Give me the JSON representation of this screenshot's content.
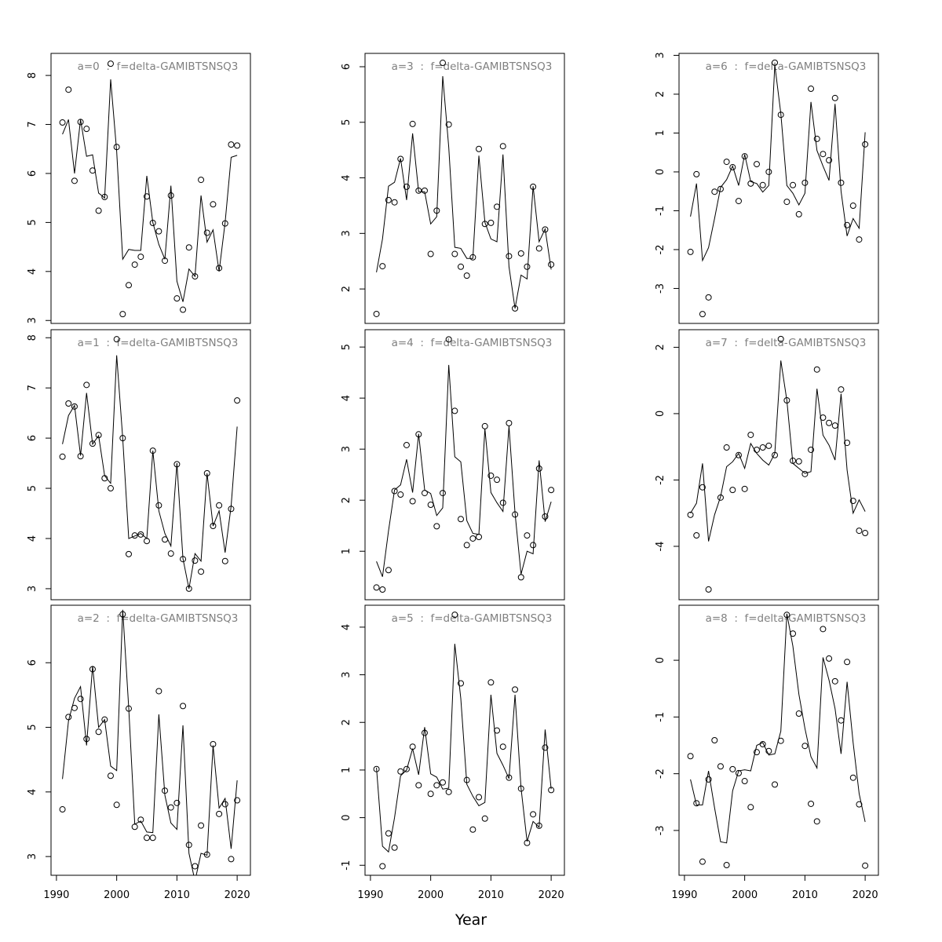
{
  "xlabel": "Year",
  "chart_data": [
    {
      "type": "line",
      "title": "a=0  :  f=delta-GAMIBTSNSQ3",
      "x": [
        1991,
        1992,
        1993,
        1994,
        1995,
        1996,
        1997,
        1998,
        1999,
        2000,
        2001,
        2002,
        2003,
        2004,
        2005,
        2006,
        2007,
        2008,
        2009,
        2010,
        2011,
        2012,
        2013,
        2014,
        2015,
        2016,
        2017,
        2018,
        2019,
        2020
      ],
      "series": [
        {
          "style": "points",
          "color": "#000000",
          "values": [
            7.04,
            7.71,
            5.85,
            7.05,
            6.91,
            6.06,
            5.24,
            5.52,
            8.24,
            6.54,
            3.13,
            3.72,
            4.14,
            4.3,
            5.53,
            4.99,
            4.82,
            4.22,
            5.55,
            3.45,
            3.22,
            4.49,
            3.9,
            5.87,
            4.79,
            5.37,
            4.07,
            4.98,
            6.59,
            6.57
          ]
        },
        {
          "style": "line",
          "color": "#000000",
          "values": [
            6.8,
            7.1,
            6.0,
            7.1,
            6.35,
            6.38,
            5.6,
            5.5,
            7.92,
            6.45,
            4.25,
            4.45,
            4.43,
            4.43,
            5.95,
            5.0,
            4.55,
            4.25,
            5.75,
            3.8,
            3.38,
            4.05,
            3.9,
            5.55,
            4.6,
            4.85,
            4.0,
            5.0,
            6.33,
            6.37
          ]
        }
      ],
      "xlim": [
        1989.1,
        2022.2
      ],
      "ylim": [
        2.94,
        8.45
      ],
      "yticks": [
        3,
        4,
        5,
        6,
        7,
        8
      ]
    },
    {
      "type": "line",
      "title": "a=1  :  f=delta-GAMIBTSNSQ3",
      "x": [
        1991,
        1992,
        1993,
        1994,
        1995,
        1996,
        1997,
        1998,
        1999,
        2000,
        2001,
        2002,
        2003,
        2004,
        2005,
        2006,
        2007,
        2008,
        2009,
        2010,
        2011,
        2012,
        2013,
        2014,
        2015,
        2016,
        2017,
        2018,
        2019,
        2020
      ],
      "series": [
        {
          "style": "points",
          "color": "#000000",
          "values": [
            5.63,
            6.69,
            6.63,
            5.64,
            7.06,
            5.89,
            6.06,
            5.2,
            5.0,
            7.97,
            6.0,
            3.69,
            4.06,
            4.08,
            3.95,
            5.75,
            4.66,
            3.98,
            3.7,
            5.48,
            3.59,
            3.0,
            3.56,
            3.34,
            5.3,
            4.25,
            4.66,
            3.55,
            4.59,
            6.75
          ]
        },
        {
          "style": "line",
          "color": "#000000",
          "values": [
            5.88,
            6.45,
            6.65,
            5.65,
            6.9,
            5.88,
            6.05,
            5.25,
            5.1,
            7.65,
            6.0,
            4.0,
            4.05,
            4.1,
            4.0,
            5.75,
            4.55,
            4.1,
            3.85,
            5.5,
            3.6,
            3.0,
            3.7,
            3.55,
            5.3,
            4.25,
            4.55,
            3.72,
            4.65,
            6.23
          ]
        }
      ],
      "xlim": [
        1989.1,
        2022.2
      ],
      "ylim": [
        2.78,
        8.16
      ],
      "yticks": [
        3,
        4,
        5,
        6,
        7,
        8
      ]
    },
    {
      "type": "line",
      "title": "a=2  :  f=delta-GAMIBTSNSQ3",
      "x": [
        1991,
        1992,
        1993,
        1994,
        1995,
        1996,
        1997,
        1998,
        1999,
        2000,
        2001,
        2002,
        2003,
        2004,
        2005,
        2006,
        2007,
        2008,
        2009,
        2010,
        2011,
        2012,
        2013,
        2014,
        2015,
        2016,
        2017,
        2018,
        2019,
        2020
      ],
      "series": [
        {
          "style": "points",
          "color": "#000000",
          "values": [
            3.73,
            5.16,
            5.3,
            5.44,
            4.82,
            5.9,
            4.93,
            5.12,
            4.25,
            3.8,
            6.75,
            5.29,
            3.46,
            3.57,
            3.29,
            3.29,
            5.56,
            4.02,
            3.76,
            3.83,
            5.33,
            3.18,
            2.85,
            3.48,
            3.03,
            4.74,
            3.66,
            3.81,
            2.96,
            3.87
          ]
        },
        {
          "style": "line",
          "color": "#000000",
          "values": [
            4.2,
            5.1,
            5.45,
            5.63,
            4.72,
            5.95,
            5.0,
            5.12,
            4.4,
            4.33,
            6.82,
            5.3,
            3.5,
            3.55,
            3.38,
            3.37,
            5.2,
            3.95,
            3.52,
            3.42,
            5.03,
            3.05,
            2.62,
            3.05,
            3.02,
            4.72,
            3.75,
            3.9,
            3.12,
            4.18
          ]
        }
      ],
      "xlim": [
        1989.1,
        2022.2
      ],
      "ylim": [
        2.71,
        6.89
      ],
      "yticks": [
        3,
        4,
        5,
        6
      ],
      "xticks": [
        1990,
        2000,
        2010,
        2020
      ]
    },
    {
      "type": "line",
      "title": "a=3  :  f=delta-GAMIBTSNSQ3",
      "x": [
        1991,
        1992,
        1993,
        1994,
        1995,
        1996,
        1997,
        1998,
        1999,
        2000,
        2001,
        2002,
        2003,
        2004,
        2005,
        2006,
        2007,
        2008,
        2009,
        2010,
        2011,
        2012,
        2013,
        2014,
        2015,
        2016,
        2017,
        2018,
        2019,
        2020
      ],
      "series": [
        {
          "style": "points",
          "color": "#000000",
          "values": [
            1.55,
            2.41,
            3.6,
            3.56,
            4.34,
            3.84,
            4.97,
            3.77,
            3.77,
            2.63,
            3.41,
            6.07,
            4.96,
            2.63,
            2.4,
            2.24,
            2.57,
            4.52,
            3.17,
            3.19,
            3.48,
            4.57,
            2.59,
            1.65,
            2.64,
            2.4,
            3.84,
            2.73,
            3.07,
            2.44
          ]
        },
        {
          "style": "line",
          "color": "#000000",
          "values": [
            2.3,
            2.9,
            3.85,
            3.92,
            4.35,
            3.6,
            4.8,
            3.75,
            3.75,
            3.17,
            3.3,
            5.83,
            4.55,
            2.75,
            2.73,
            2.55,
            2.55,
            4.4,
            3.2,
            2.9,
            2.85,
            4.42,
            2.4,
            1.65,
            2.25,
            2.18,
            3.85,
            2.85,
            3.08,
            2.35
          ]
        }
      ],
      "xlim": [
        1989.1,
        2022.2
      ],
      "ylim": [
        1.38,
        6.24
      ],
      "yticks": [
        2,
        3,
        4,
        5,
        6
      ]
    },
    {
      "type": "line",
      "title": "a=4  :  f=delta-GAMIBTSNSQ3",
      "x": [
        1991,
        1992,
        1993,
        1994,
        1995,
        1996,
        1997,
        1998,
        1999,
        2000,
        2001,
        2002,
        2003,
        2004,
        2005,
        2006,
        2007,
        2008,
        2009,
        2010,
        2011,
        2012,
        2013,
        2014,
        2015,
        2016,
        2017,
        2018,
        2019,
        2020
      ],
      "series": [
        {
          "style": "points",
          "color": "#000000",
          "values": [
            0.29,
            0.25,
            0.63,
            2.18,
            2.11,
            3.08,
            1.98,
            3.29,
            2.14,
            1.91,
            1.49,
            2.14,
            5.15,
            3.75,
            1.63,
            1.12,
            1.25,
            1.28,
            3.45,
            2.48,
            2.4,
            1.95,
            3.51,
            1.72,
            0.49,
            1.31,
            1.12,
            2.62,
            1.68,
            2.2
          ]
        },
        {
          "style": "line",
          "color": "#000000",
          "values": [
            0.8,
            0.5,
            1.4,
            2.2,
            2.3,
            2.8,
            2.15,
            3.3,
            2.2,
            2.13,
            1.7,
            1.85,
            4.65,
            2.85,
            2.75,
            1.6,
            1.35,
            1.33,
            3.4,
            2.15,
            1.95,
            1.78,
            3.45,
            1.75,
            0.55,
            1.0,
            0.95,
            2.78,
            1.58,
            1.97
          ]
        }
      ],
      "xlim": [
        1989.1,
        2022.2
      ],
      "ylim": [
        0.05,
        5.34
      ],
      "yticks": [
        1,
        2,
        3,
        4,
        5
      ]
    },
    {
      "type": "line",
      "title": "a=5  :  f=delta-GAMIBTSNSQ3",
      "x": [
        1991,
        1992,
        1993,
        1994,
        1995,
        1996,
        1997,
        1998,
        1999,
        2000,
        2001,
        2002,
        2003,
        2004,
        2005,
        2006,
        2007,
        2008,
        2009,
        2010,
        2011,
        2012,
        2013,
        2014,
        2015,
        2016,
        2017,
        2018,
        2019,
        2020
      ],
      "series": [
        {
          "style": "points",
          "color": "#000000",
          "values": [
            1.02,
            -1.02,
            -0.33,
            -0.63,
            0.97,
            1.02,
            1.49,
            0.68,
            1.78,
            0.5,
            0.68,
            0.74,
            0.54,
            4.26,
            2.82,
            0.79,
            -0.25,
            0.43,
            -0.02,
            2.84,
            1.83,
            1.49,
            0.84,
            2.69,
            0.61,
            -0.53,
            0.07,
            -0.17,
            1.47,
            0.58
          ]
        },
        {
          "style": "line",
          "color": "#000000",
          "values": [
            1.05,
            -0.6,
            -0.72,
            0.0,
            0.88,
            1.0,
            1.45,
            0.9,
            1.9,
            0.92,
            0.85,
            0.6,
            0.62,
            3.65,
            2.5,
            0.7,
            0.45,
            0.25,
            0.32,
            2.58,
            1.35,
            1.1,
            0.82,
            2.58,
            0.62,
            -0.5,
            -0.08,
            -0.2,
            1.85,
            0.6
          ]
        }
      ],
      "xlim": [
        1989.1,
        2022.2
      ],
      "ylim": [
        -1.21,
        4.46
      ],
      "yticks": [
        -1,
        0,
        1,
        2,
        3,
        4
      ],
      "xticks": [
        1990,
        2000,
        2010,
        2020
      ]
    },
    {
      "type": "line",
      "title": "a=6  :  f=delta-GAMIBTSNSQ3",
      "x": [
        1991,
        1992,
        1993,
        1994,
        1995,
        1996,
        1997,
        1998,
        1999,
        2000,
        2001,
        2002,
        2003,
        2004,
        2005,
        2006,
        2007,
        2008,
        2009,
        2010,
        2011,
        2012,
        2013,
        2014,
        2015,
        2016,
        2017,
        2018,
        2019,
        2020
      ],
      "series": [
        {
          "style": "points",
          "color": "#000000",
          "values": [
            -2.06,
            -0.06,
            -3.66,
            -3.23,
            -0.51,
            -0.44,
            0.26,
            0.12,
            -0.75,
            0.4,
            -0.3,
            0.2,
            -0.34,
            0.0,
            2.81,
            1.47,
            -0.77,
            -0.34,
            -1.09,
            -0.28,
            2.14,
            0.85,
            0.46,
            0.3,
            1.9,
            -0.28,
            -1.37,
            -0.87,
            -1.74,
            0.71
          ]
        },
        {
          "style": "line",
          "color": "#000000",
          "values": [
            -1.15,
            -0.3,
            -2.28,
            -1.95,
            -1.2,
            -0.4,
            -0.2,
            0.15,
            -0.35,
            0.45,
            -0.25,
            -0.3,
            -0.52,
            -0.35,
            2.75,
            1.5,
            -0.35,
            -0.55,
            -0.85,
            -0.55,
            1.8,
            0.55,
            0.15,
            -0.22,
            1.75,
            -0.5,
            -1.65,
            -1.2,
            -1.45,
            1.02
          ]
        }
      ],
      "xlim": [
        1989.1,
        2022.2
      ],
      "ylim": [
        -3.9,
        3.05
      ],
      "yticks": [
        -3,
        -2,
        -1,
        0,
        1,
        2,
        3
      ]
    },
    {
      "type": "line",
      "title": "a=7  :  f=delta-GAMIBTSNSQ3",
      "x": [
        1991,
        1992,
        1993,
        1994,
        1995,
        1996,
        1997,
        1998,
        1999,
        2000,
        2001,
        2002,
        2003,
        2004,
        2005,
        2006,
        2007,
        2008,
        2009,
        2010,
        2011,
        2012,
        2013,
        2014,
        2015,
        2016,
        2017,
        2018,
        2019,
        2020
      ],
      "series": [
        {
          "style": "points",
          "color": "#000000",
          "values": [
            -3.05,
            -3.67,
            -2.22,
            -5.3,
            null,
            -2.53,
            -1.02,
            -2.3,
            -1.25,
            -2.27,
            -0.64,
            -1.09,
            -1.02,
            -0.97,
            -1.25,
            2.25,
            0.4,
            -1.42,
            -1.44,
            -1.82,
            -1.09,
            1.33,
            -0.12,
            -0.28,
            -0.36,
            0.73,
            -0.88,
            -2.63,
            -3.53,
            -3.6
          ]
        },
        {
          "style": "line",
          "color": "#000000",
          "values": [
            -3.0,
            -2.7,
            -1.5,
            -3.85,
            -3.05,
            -2.5,
            -1.6,
            -1.45,
            -1.2,
            -1.65,
            -0.9,
            -1.2,
            -1.4,
            -1.55,
            -1.2,
            1.6,
            0.4,
            -1.5,
            -1.65,
            -1.8,
            -1.75,
            0.75,
            -0.65,
            -0.95,
            -1.4,
            0.6,
            -1.7,
            -3.0,
            -2.6,
            -2.95
          ]
        }
      ],
      "xlim": [
        1989.1,
        2022.2
      ],
      "ylim": [
        -5.61,
        2.53
      ],
      "yticks": [
        -4,
        -2,
        0,
        2
      ]
    },
    {
      "type": "line",
      "title": "a=8  :  f=delta-GAMIBTSNSQ3",
      "x": [
        1991,
        1992,
        1993,
        1994,
        1995,
        1996,
        1997,
        1998,
        1999,
        2000,
        2001,
        2002,
        2003,
        2004,
        2005,
        2006,
        2007,
        2008,
        2009,
        2010,
        2011,
        2012,
        2013,
        2014,
        2015,
        2016,
        2017,
        2018,
        2019,
        2020
      ],
      "series": [
        {
          "style": "points",
          "color": "#000000",
          "values": [
            -1.69,
            -2.52,
            -3.55,
            -2.1,
            -1.41,
            -1.87,
            -3.61,
            -1.92,
            -1.99,
            -2.13,
            -2.59,
            -1.62,
            -1.48,
            -1.6,
            -2.19,
            -1.42,
            0.8,
            0.47,
            -0.94,
            -1.51,
            -2.53,
            -2.84,
            0.55,
            0.03,
            -0.37,
            -1.06,
            -0.03,
            -2.07,
            -2.54,
            -3.62
          ]
        },
        {
          "style": "line",
          "color": "#000000",
          "values": [
            -2.1,
            -2.55,
            -2.55,
            -1.95,
            -2.6,
            -3.2,
            -3.22,
            -2.3,
            -1.95,
            -1.93,
            -1.95,
            -1.5,
            -1.45,
            -1.67,
            -1.65,
            -1.25,
            0.82,
            0.25,
            -0.6,
            -1.2,
            -1.7,
            -1.9,
            0.05,
            -0.35,
            -0.85,
            -1.65,
            -0.38,
            -1.45,
            -2.35,
            -2.85
          ]
        }
      ],
      "xlim": [
        1989.1,
        2022.2
      ],
      "ylim": [
        -3.79,
        0.97
      ],
      "yticks": [
        -3,
        -2,
        -1,
        0
      ],
      "xticks": [
        1990,
        2000,
        2010,
        2020
      ]
    }
  ]
}
